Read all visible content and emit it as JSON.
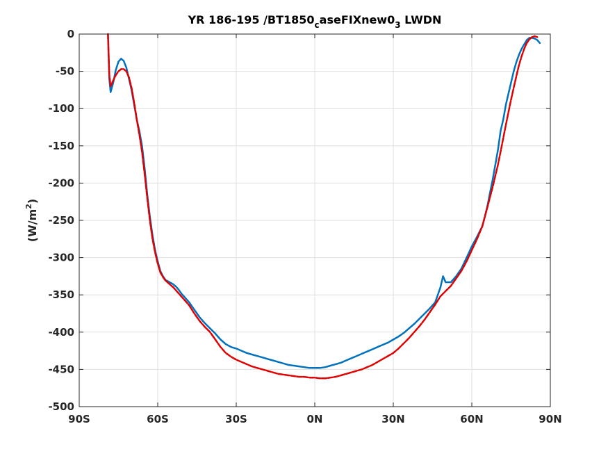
{
  "chart_data": {
    "type": "line",
    "title_parts": {
      "prefix": "YR 186-195 /BT1850",
      "sub1": "c",
      "middle": "aseFIXnew0",
      "sub2": "3",
      "suffix": " LWDN"
    },
    "xlabel": "",
    "ylabel_parts": {
      "main": "(W/m",
      "sup": "2",
      "close": ")"
    },
    "xlim": [
      -90,
      90
    ],
    "ylim": [
      -500,
      0
    ],
    "xticks": [
      -90,
      -60,
      -30,
      0,
      30,
      60,
      90
    ],
    "xtick_labels": [
      "90S",
      "60S",
      "30S",
      "0N",
      "30N",
      "60N",
      "90N"
    ],
    "yticks": [
      0,
      -50,
      -100,
      -150,
      -200,
      -250,
      -300,
      -350,
      -400,
      -450,
      -500
    ],
    "ytick_labels": [
      "0",
      "-50",
      "-100",
      "-150",
      "-200",
      "-250",
      "-300",
      "-350",
      "-400",
      "-450",
      "-500"
    ],
    "grid": true,
    "series": [
      {
        "color": "#0072bd",
        "style": "solid",
        "x": [
          -79,
          -78.5,
          -78,
          -77,
          -76,
          -75,
          -74,
          -73,
          -72,
          -71,
          -70,
          -69,
          -68,
          -67,
          -66,
          -65,
          -64,
          -63,
          -62,
          -61,
          -60,
          -59,
          -58,
          -57,
          -56,
          -55,
          -54,
          -53,
          -52,
          -51,
          -50,
          -48,
          -46,
          -44,
          -42,
          -40,
          -38,
          -36,
          -34,
          -32,
          -30,
          -28,
          -26,
          -24,
          -22,
          -20,
          -18,
          -16,
          -14,
          -12,
          -10,
          -8,
          -6,
          -4,
          -2,
          0,
          2,
          4,
          6,
          8,
          10,
          12,
          14,
          16,
          18,
          20,
          22,
          24,
          26,
          28,
          30,
          32,
          34,
          36,
          38,
          40,
          42,
          44,
          46,
          48,
          49,
          50,
          52,
          54,
          56,
          58,
          60,
          62,
          64,
          65,
          66,
          67,
          68,
          69,
          70,
          71,
          72,
          73,
          74,
          75,
          76,
          77,
          78,
          79,
          80,
          81,
          82,
          83,
          84,
          85,
          86
        ],
        "y": [
          0,
          -60,
          -78,
          -65,
          -48,
          -37,
          -33,
          -36,
          -45,
          -60,
          -75,
          -95,
          -115,
          -130,
          -150,
          -180,
          -215,
          -245,
          -270,
          -290,
          -305,
          -318,
          -325,
          -330,
          -332,
          -334,
          -336,
          -339,
          -343,
          -348,
          -352,
          -360,
          -370,
          -380,
          -388,
          -395,
          -402,
          -410,
          -416,
          -420,
          -422,
          -425,
          -428,
          -430,
          -432,
          -434,
          -436,
          -438,
          -440,
          -442,
          -444,
          -445,
          -446,
          -447,
          -448,
          -448,
          -448,
          -447,
          -445,
          -443,
          -441,
          -438,
          -435,
          -432,
          -429,
          -426,
          -423,
          -420,
          -417,
          -414,
          -410,
          -406,
          -401,
          -395,
          -389,
          -382,
          -375,
          -368,
          -360,
          -340,
          -325,
          -333,
          -333,
          -325,
          -315,
          -300,
          -285,
          -272,
          -258,
          -245,
          -230,
          -212,
          -195,
          -175,
          -155,
          -130,
          -115,
          -95,
          -80,
          -65,
          -50,
          -38,
          -28,
          -20,
          -14,
          -8,
          -5,
          -5,
          -6,
          -8,
          -12
        ]
      },
      {
        "color": "#e00000",
        "style": "dashed",
        "x": [
          -79,
          -78.5,
          -78,
          -77,
          -76,
          -75,
          -74,
          -73,
          -72,
          -71,
          -70,
          -69,
          -68,
          -67,
          -66,
          -65,
          -64,
          -63,
          -62,
          -61,
          -60,
          -59,
          -58,
          -57,
          -56,
          -55,
          -54,
          -53,
          -52,
          -51,
          -50,
          -48,
          -46,
          -44,
          -42,
          -40,
          -38,
          -36,
          -34,
          -32,
          -30,
          -28,
          -26,
          -24,
          -22,
          -20,
          -18,
          -16,
          -14,
          -12,
          -10,
          -8,
          -6,
          -4,
          -2,
          0,
          2,
          4,
          6,
          8,
          10,
          12,
          14,
          16,
          18,
          20,
          22,
          24,
          26,
          28,
          30,
          32,
          34,
          36,
          38,
          40,
          42,
          44,
          46,
          48,
          50,
          52,
          54,
          56,
          58,
          60,
          62,
          64,
          65,
          66,
          67,
          68,
          69,
          70,
          71,
          72,
          73,
          74,
          75,
          76,
          77,
          78,
          79,
          80,
          81,
          82,
          83,
          84,
          85
        ],
        "y": [
          0,
          -55,
          -70,
          -62,
          -55,
          -50,
          -47,
          -47,
          -50,
          -58,
          -72,
          -92,
          -115,
          -135,
          -158,
          -188,
          -220,
          -250,
          -275,
          -293,
          -308,
          -320,
          -326,
          -331,
          -334,
          -337,
          -340,
          -344,
          -348,
          -352,
          -356,
          -364,
          -375,
          -385,
          -393,
          -400,
          -410,
          -420,
          -428,
          -433,
          -437,
          -440,
          -443,
          -446,
          -448,
          -450,
          -452,
          -454,
          -456,
          -457,
          -458,
          -459,
          -460,
          -460,
          -461,
          -461,
          -462,
          -462,
          -461,
          -460,
          -458,
          -456,
          -454,
          -452,
          -450,
          -447,
          -444,
          -440,
          -436,
          -432,
          -428,
          -422,
          -415,
          -408,
          -400,
          -392,
          -383,
          -373,
          -363,
          -352,
          -345,
          -338,
          -328,
          -318,
          -305,
          -290,
          -275,
          -258,
          -245,
          -232,
          -218,
          -205,
          -190,
          -175,
          -158,
          -140,
          -122,
          -105,
          -88,
          -72,
          -57,
          -42,
          -30,
          -20,
          -12,
          -7,
          -4,
          -3,
          -4
        ]
      }
    ]
  }
}
